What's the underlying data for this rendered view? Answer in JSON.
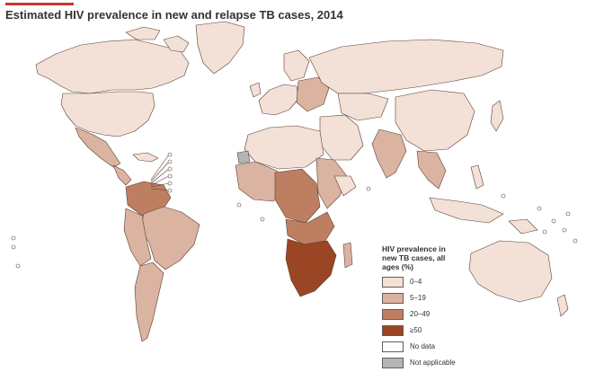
{
  "title": "Estimated HIV prevalence in new and relapse TB cases, 2014",
  "legend": {
    "title": "HIV prevalence in new TB cases, all ages (%)",
    "items": [
      {
        "label": "0–4",
        "color": "#f3e0d6"
      },
      {
        "label": "5–19",
        "color": "#dbb3a1"
      },
      {
        "label": "20–49",
        "color": "#bd7e62"
      },
      {
        "label": "≥50",
        "color": "#9a4524"
      },
      {
        "label": "No data",
        "color": "#ffffff"
      },
      {
        "label": "Not applicable",
        "color": "#b4b4b4"
      }
    ]
  },
  "colors": {
    "border": "#5a3f35",
    "accent_bar": "#c8372d"
  }
}
